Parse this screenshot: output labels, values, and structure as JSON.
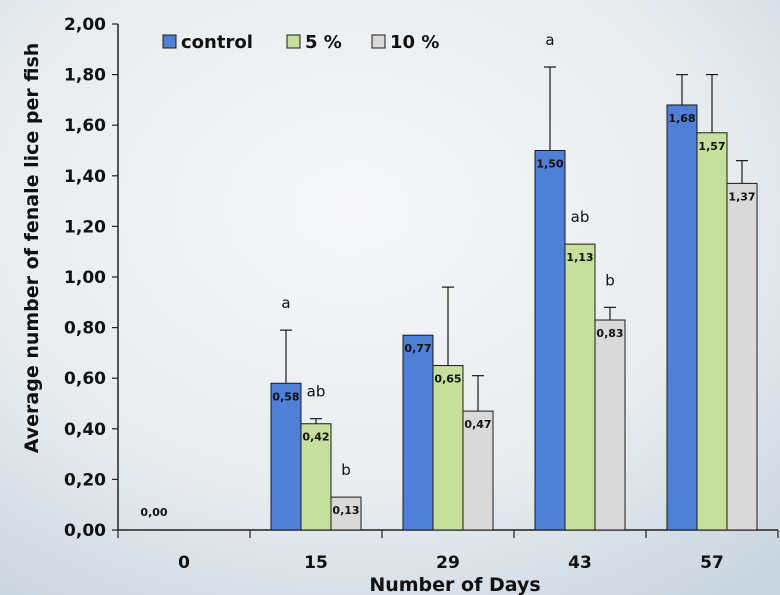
{
  "chart_data": {
    "type": "bar",
    "xlabel": "Number of Days",
    "ylabel": "Average number of fenale lice per fish",
    "categories": [
      "0",
      "15",
      "29",
      "43",
      "57"
    ],
    "ylim": [
      0,
      2
    ],
    "yticks": [
      "0,00",
      "0,20",
      "0,40",
      "0,60",
      "0,80",
      "1,00",
      "1,20",
      "1,40",
      "1,60",
      "1,80",
      "2,00"
    ],
    "grid": false,
    "legend_position": "top-left",
    "series": [
      {
        "name": "control",
        "color": "#4f7fd6",
        "values": [
          0.0,
          0.58,
          0.77,
          1.5,
          1.68
        ],
        "labels": [
          "0,00",
          "0,58",
          "0,77",
          "1,50",
          "1,68"
        ],
        "error_upper": [
          null,
          0.79,
          null,
          1.83,
          1.8
        ],
        "letters": [
          "",
          "a",
          "",
          "a",
          ""
        ]
      },
      {
        "name": "5 %",
        "color": "#c6df9c",
        "values": [
          null,
          0.42,
          0.65,
          1.13,
          1.57
        ],
        "labels": [
          "",
          "0,42",
          "0,65",
          "1,13",
          "1,57"
        ],
        "error_upper": [
          null,
          0.44,
          0.96,
          null,
          1.8
        ],
        "letters": [
          "",
          "ab",
          "",
          "ab",
          ""
        ]
      },
      {
        "name": "10 %",
        "color": "#d9d9d9",
        "values": [
          null,
          0.13,
          0.47,
          0.83,
          1.37
        ],
        "labels": [
          "",
          "0,13",
          "0,47",
          "0,83",
          "1,37"
        ],
        "error_upper": [
          null,
          null,
          0.61,
          0.88,
          1.46
        ],
        "letters": [
          "",
          "b",
          "",
          "b",
          ""
        ]
      }
    ]
  }
}
